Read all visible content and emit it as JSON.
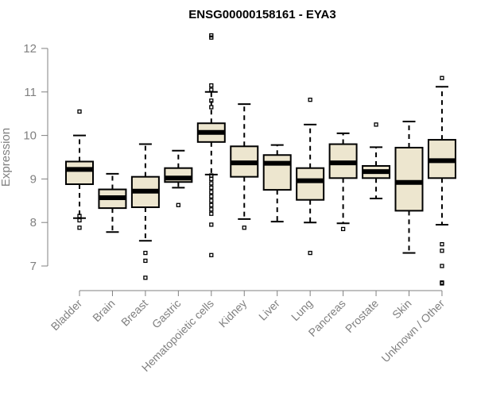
{
  "chart_data": {
    "type": "boxplot",
    "title": "ENSG00000158161 - EYA3",
    "xlabel": "",
    "ylabel": "Expression",
    "ylim": [
      6.5,
      12.3
    ],
    "yticks": [
      7,
      8,
      9,
      10,
      11,
      12
    ],
    "grid": false,
    "colors": {
      "box_fill": "#ede6cf",
      "stroke": "#000000",
      "axis": "#808080",
      "tick_text": "#808080"
    },
    "categories": [
      "Bladder",
      "Brain",
      "Breast",
      "Gastric",
      "Hematopoietic cells",
      "Kidney",
      "Liver",
      "Lung",
      "Pancreas",
      "Prostate",
      "Skin",
      "Unknown / Other"
    ],
    "boxes": [
      {
        "name": "Bladder",
        "whisker_low": 8.1,
        "q1": 8.88,
        "median": 9.22,
        "q3": 9.4,
        "whisker_high": 10.0,
        "outliers": [
          10.55,
          8.15,
          8.05,
          7.88
        ]
      },
      {
        "name": "Brain",
        "whisker_low": 7.78,
        "q1": 8.33,
        "median": 8.57,
        "q3": 8.76,
        "whisker_high": 9.12,
        "outliers": []
      },
      {
        "name": "Breast",
        "whisker_low": 7.58,
        "q1": 8.35,
        "median": 8.72,
        "q3": 9.05,
        "whisker_high": 9.8,
        "outliers": [
          7.3,
          7.12,
          6.73
        ]
      },
      {
        "name": "Gastric",
        "whisker_low": 8.8,
        "q1": 8.93,
        "median": 9.02,
        "q3": 9.25,
        "whisker_high": 9.65,
        "outliers": [
          8.4
        ]
      },
      {
        "name": "Hematopoietic cells",
        "whisker_low": 9.1,
        "q1": 9.85,
        "median": 10.07,
        "q3": 10.28,
        "whisker_high": 11.0,
        "outliers": [
          12.3,
          12.25,
          11.15,
          11.05,
          10.8,
          10.65,
          9.08,
          9.0,
          8.9,
          8.8,
          8.7,
          8.6,
          8.5,
          8.4,
          8.3,
          8.2,
          7.95,
          7.25
        ]
      },
      {
        "name": "Kidney",
        "whisker_low": 8.08,
        "q1": 9.05,
        "median": 9.37,
        "q3": 9.75,
        "whisker_high": 10.72,
        "outliers": [
          7.88
        ]
      },
      {
        "name": "Liver",
        "whisker_low": 8.02,
        "q1": 8.75,
        "median": 9.36,
        "q3": 9.55,
        "whisker_high": 9.78,
        "outliers": []
      },
      {
        "name": "Lung",
        "whisker_low": 8.0,
        "q1": 8.52,
        "median": 8.96,
        "q3": 9.25,
        "whisker_high": 10.25,
        "outliers": [
          10.82,
          7.3
        ]
      },
      {
        "name": "Pancreas",
        "whisker_low": 7.98,
        "q1": 9.02,
        "median": 9.37,
        "q3": 9.8,
        "whisker_high": 10.05,
        "outliers": [
          7.85
        ]
      },
      {
        "name": "Prostate",
        "whisker_low": 8.55,
        "q1": 9.02,
        "median": 9.17,
        "q3": 9.3,
        "whisker_high": 9.73,
        "outliers": [
          10.25
        ]
      },
      {
        "name": "Skin",
        "whisker_low": 7.3,
        "q1": 8.27,
        "median": 8.92,
        "q3": 9.72,
        "whisker_high": 10.32,
        "outliers": []
      },
      {
        "name": "Unknown / Other",
        "whisker_low": 7.95,
        "q1": 9.02,
        "median": 9.42,
        "q3": 9.9,
        "whisker_high": 11.12,
        "outliers": [
          11.32,
          7.5,
          7.35,
          7.0,
          6.62,
          6.6
        ]
      }
    ]
  }
}
